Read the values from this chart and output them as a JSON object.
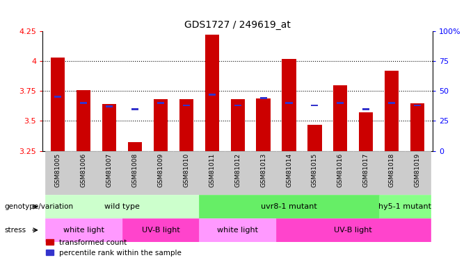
{
  "title": "GDS1727 / 249619_at",
  "samples": [
    "GSM81005",
    "GSM81006",
    "GSM81007",
    "GSM81008",
    "GSM81009",
    "GSM81010",
    "GSM81011",
    "GSM81012",
    "GSM81013",
    "GSM81014",
    "GSM81015",
    "GSM81016",
    "GSM81017",
    "GSM81018",
    "GSM81019"
  ],
  "red_values": [
    4.03,
    3.76,
    3.64,
    3.32,
    3.68,
    3.68,
    4.22,
    3.68,
    3.69,
    4.02,
    3.47,
    3.8,
    3.57,
    3.92,
    3.65
  ],
  "blue_values": [
    3.7,
    3.65,
    3.62,
    3.6,
    3.65,
    3.63,
    3.72,
    3.63,
    3.69,
    3.65,
    3.63,
    3.65,
    3.6,
    3.65,
    3.63
  ],
  "ymin": 3.25,
  "ymax": 4.25,
  "yticks": [
    3.25,
    3.5,
    3.75,
    4.0,
    4.25
  ],
  "ytick_labels": [
    "3.25",
    "3.5",
    "3.75",
    "4",
    "4.25"
  ],
  "right_yticks_pct": [
    0,
    25,
    50,
    75,
    100
  ],
  "right_ytick_labels": [
    "0",
    "25",
    "50",
    "75",
    "100%"
  ],
  "bar_color": "#CC0000",
  "blue_color": "#3333CC",
  "genotype_groups": [
    {
      "label": "wild type",
      "start": 0,
      "end": 5,
      "color": "#CCFFCC"
    },
    {
      "label": "uvr8-1 mutant",
      "start": 6,
      "end": 12,
      "color": "#66EE66"
    },
    {
      "label": "hy5-1 mutant",
      "start": 13,
      "end": 14,
      "color": "#88FF88"
    }
  ],
  "stress_groups": [
    {
      "label": "white light",
      "start": 0,
      "end": 2,
      "color": "#FF99FF"
    },
    {
      "label": "UV-B light",
      "start": 3,
      "end": 5,
      "color": "#FF44CC"
    },
    {
      "label": "white light",
      "start": 6,
      "end": 8,
      "color": "#FF99FF"
    },
    {
      "label": "UV-B light",
      "start": 9,
      "end": 14,
      "color": "#FF44CC"
    }
  ],
  "legend_red": "transformed count",
  "legend_blue": "percentile rank within the sample",
  "bar_width": 0.55,
  "genotype_label": "genotype/variation",
  "stress_label": "stress"
}
